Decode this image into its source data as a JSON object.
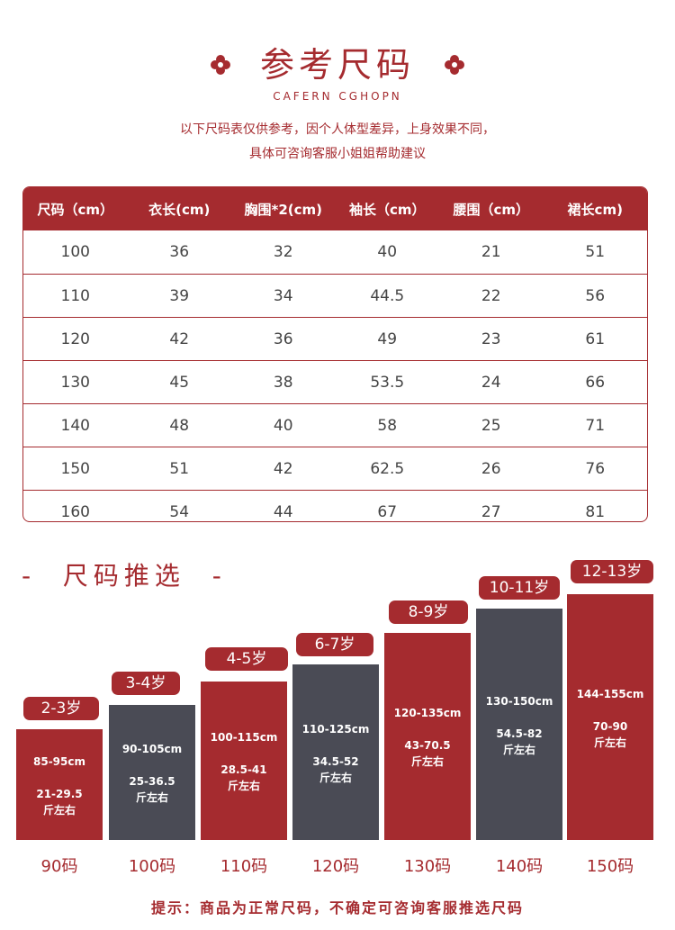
{
  "header": {
    "title": "参考尺码",
    "subtitle_en": "CAFERN CGHOPN",
    "intro_line1": "以下尺码表仅供参考，因个人体型差异，上身效果不同，",
    "intro_line2": "具体可咨询客服小姐姐帮助建议"
  },
  "size_table": {
    "columns": [
      "尺码（cm）",
      "衣长(cm)",
      "胸围*2(cm)",
      "袖长（cm）",
      "腰围（cm）",
      "裙长cm)"
    ],
    "rows": [
      [
        "100",
        "36",
        "32",
        "40",
        "21",
        "51"
      ],
      [
        "110",
        "39",
        "34",
        "44.5",
        "22",
        "56"
      ],
      [
        "120",
        "42",
        "36",
        "49",
        "23",
        "61"
      ],
      [
        "130",
        "45",
        "38",
        "53.5",
        "24",
        "66"
      ],
      [
        "140",
        "48",
        "40",
        "58",
        "25",
        "71"
      ],
      [
        "150",
        "51",
        "42",
        "62.5",
        "26",
        "76"
      ],
      [
        "160",
        "54",
        "44",
        "67",
        "27",
        "81"
      ]
    ]
  },
  "recommend": {
    "section_title": "-  尺码推选  -",
    "items": [
      {
        "age": "2-3岁",
        "height": "85-95cm",
        "weight_range": "21-29.5",
        "weight_unit": "斤左右",
        "code": "90码"
      },
      {
        "age": "3-4岁",
        "height": "90-105cm",
        "weight_range": "25-36.5",
        "weight_unit": "斤左右",
        "code": "100码"
      },
      {
        "age": "4-5岁",
        "height": "100-115cm",
        "weight_range": "28.5-41",
        "weight_unit": "斤左右",
        "code": "110码"
      },
      {
        "age": "6-7岁",
        "height": "110-125cm",
        "weight_range": "34.5-52",
        "weight_unit": "斤左右",
        "code": "120码"
      },
      {
        "age": "8-9岁",
        "height": "120-135cm",
        "weight_range": "43-70.5",
        "weight_unit": "斤左右",
        "code": "130码"
      },
      {
        "age": "10-11岁",
        "height": "130-150cm",
        "weight_range": "54.5-82",
        "weight_unit": "斤左右",
        "code": "140码"
      },
      {
        "age": "12-13岁",
        "height": "144-155cm",
        "weight_range": "70-90",
        "weight_unit": "斤左右",
        "code": "150码"
      }
    ]
  },
  "footer": {
    "tip": "提示：商品为正常尺码，不确定可咨询客服推选尺码"
  },
  "colors": {
    "accent_red": "#a52b2f",
    "bar_gray": "#4a4b55"
  }
}
